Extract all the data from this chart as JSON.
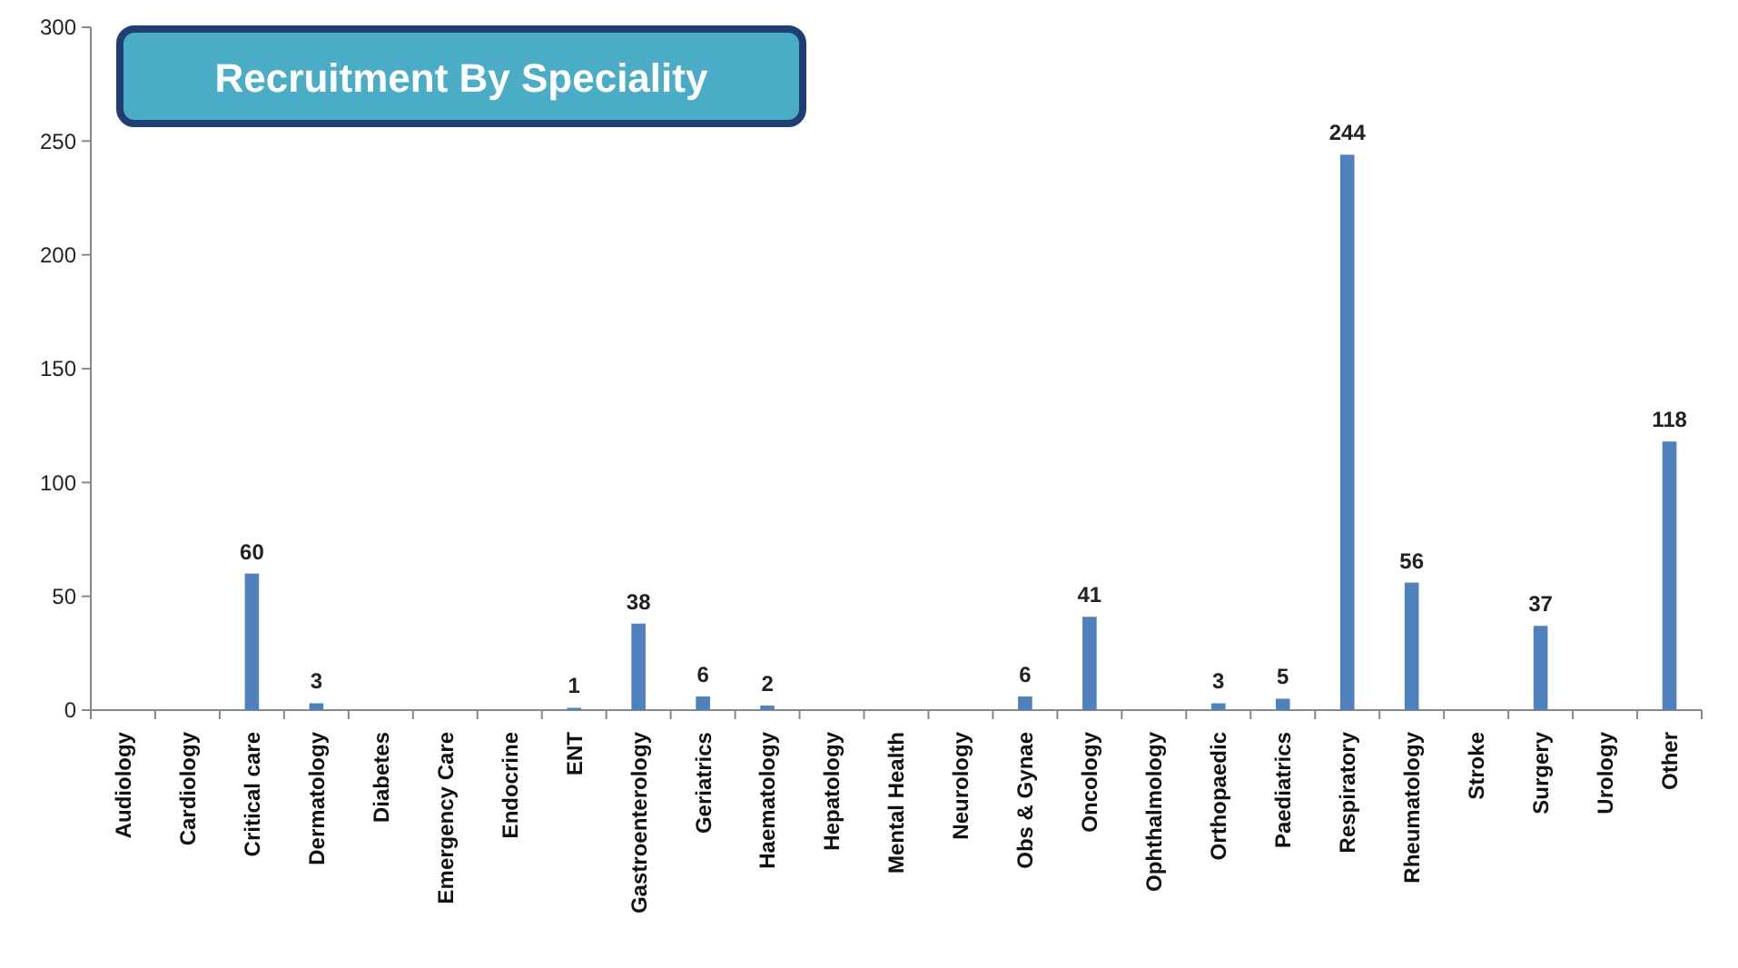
{
  "chart_data": {
    "type": "bar",
    "title": "Recruitment By Speciality",
    "categories": [
      "Audiology",
      "Cardiology",
      "Critical care",
      "Dermatology",
      "Diabetes",
      "Emergency Care",
      "Endocrine",
      "ENT",
      "Gastroenterology",
      "Geriatrics",
      "Haematology",
      "Hepatology",
      "Mental Health",
      "Neurology",
      "Obs & Gynae",
      "Oncology",
      "Ophthalmology",
      "Orthopaedic",
      "Paediatrics",
      "Respiratory",
      "Rheumatology",
      "Stroke",
      "Surgery",
      "Urology",
      "Other"
    ],
    "values": [
      0,
      0,
      60,
      3,
      0,
      0,
      0,
      1,
      38,
      6,
      2,
      0,
      0,
      0,
      6,
      41,
      0,
      3,
      5,
      244,
      56,
      0,
      37,
      0,
      118
    ],
    "value_labels": [
      null,
      null,
      "60",
      "3",
      null,
      null,
      null,
      "1",
      "38",
      "6",
      "2",
      null,
      null,
      null,
      "6",
      "41",
      null,
      "3",
      "5",
      "244",
      "56",
      null,
      "37",
      null,
      "118"
    ],
    "color": "#4f81bd",
    "ylim": [
      0,
      300
    ],
    "yticks": [
      0,
      50,
      100,
      150,
      200,
      250,
      300
    ],
    "grid": false
  }
}
